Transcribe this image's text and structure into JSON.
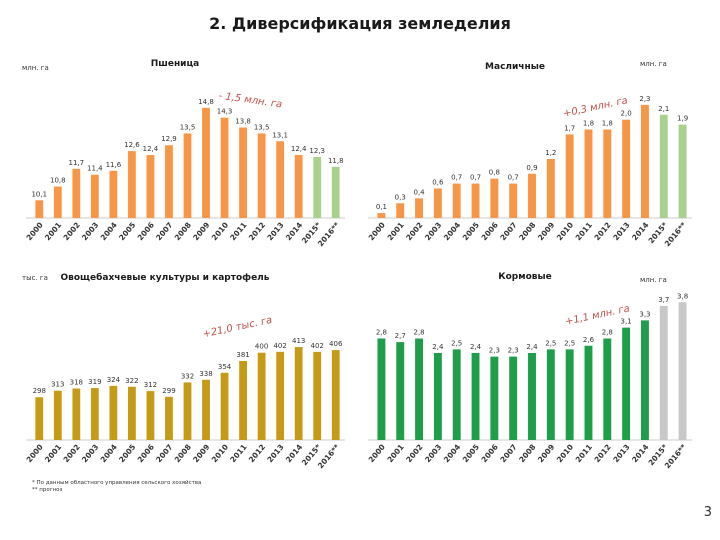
{
  "page": {
    "title": "2. Диверсификация земледелия",
    "page_number": "3",
    "footnotes": [
      "* По данным областного управления сельского хозяйства",
      "** прогноз"
    ]
  },
  "chart_data": [
    {
      "id": "wheat",
      "type": "bar",
      "title": "Пшеница",
      "unit": "млн. га",
      "annotation": "- 1,5 млн. га",
      "categories": [
        "2000",
        "2001",
        "2002",
        "2003",
        "2004",
        "2005",
        "2006",
        "2007",
        "2008",
        "2009",
        "2010",
        "2011",
        "2012",
        "2013",
        "2014",
        "2015*",
        "2016**"
      ],
      "values": [
        10.1,
        10.8,
        11.7,
        11.4,
        11.6,
        12.6,
        12.4,
        12.9,
        13.5,
        14.8,
        14.3,
        13.8,
        13.5,
        13.1,
        12.4,
        12.3,
        11.8
      ],
      "labels": [
        "10,1",
        "10,8",
        "11,7",
        "11,4",
        "11,6",
        "12,6",
        "12,4",
        "12,9",
        "13,5",
        "14,8",
        "14,3",
        "13,8",
        "13,5",
        "13,1",
        "12,4",
        "12,3",
        "11,8"
      ],
      "colors": [
        "#f79646",
        "#f79646",
        "#f79646",
        "#f79646",
        "#f79646",
        "#f79646",
        "#f79646",
        "#f79646",
        "#f79646",
        "#f79646",
        "#f79646",
        "#f79646",
        "#f79646",
        "#f79646",
        "#f79646",
        "#a9d18e",
        "#a9d18e"
      ]
    },
    {
      "id": "oilseeds",
      "type": "bar",
      "title": "Масличные",
      "unit": "млн. га",
      "annotation": "+0,3 млн. га",
      "categories": [
        "2000",
        "2001",
        "2002",
        "2003",
        "2004",
        "2005",
        "2006",
        "2007",
        "2008",
        "2009",
        "2010",
        "2011",
        "2012",
        "2013",
        "2014",
        "2015*",
        "2016**"
      ],
      "values": [
        0.1,
        0.3,
        0.4,
        0.6,
        0.7,
        0.7,
        0.8,
        0.7,
        0.9,
        1.2,
        1.7,
        1.8,
        1.8,
        2.0,
        2.3,
        2.1,
        1.9
      ],
      "labels": [
        "0,1",
        "0,3",
        "0,4",
        "0,6",
        "0,7",
        "0,7",
        "0,8",
        "0,7",
        "0,9",
        "1,2",
        "1,7",
        "1,8",
        "1,8",
        "2,0",
        "2,3",
        "2,1",
        "1,9"
      ],
      "colors": [
        "#f79646",
        "#f79646",
        "#f79646",
        "#f79646",
        "#f79646",
        "#f79646",
        "#f79646",
        "#f79646",
        "#f79646",
        "#f79646",
        "#f79646",
        "#f79646",
        "#f79646",
        "#f79646",
        "#f79646",
        "#a9d18e",
        "#a9d18e"
      ]
    },
    {
      "id": "vegetables",
      "type": "bar",
      "title": "Овощебахчевые культуры и картофель",
      "unit": "тыс. га",
      "annotation": "+21,0 тыс. га",
      "categories": [
        "2000",
        "2001",
        "2002",
        "2003",
        "2004",
        "2005",
        "2006",
        "2007",
        "2008",
        "2009",
        "2010",
        "2011",
        "2012",
        "2013",
        "2014",
        "2015*",
        "2016**"
      ],
      "values": [
        298,
        313,
        318,
        319,
        324,
        322,
        312,
        299,
        332,
        338,
        354,
        381,
        400,
        402,
        413,
        402,
        406
      ],
      "labels": [
        "298",
        "313",
        "318",
        "319",
        "324",
        "322",
        "312",
        "299",
        "332",
        "338",
        "354",
        "381",
        "400",
        "402",
        "413",
        "402",
        "406"
      ],
      "colors": [
        "#c49a16",
        "#c49a16",
        "#c49a16",
        "#c49a16",
        "#c49a16",
        "#c49a16",
        "#c49a16",
        "#c49a16",
        "#c49a16",
        "#c49a16",
        "#c49a16",
        "#c49a16",
        "#c49a16",
        "#c49a16",
        "#c49a16",
        "#c49a16",
        "#c49a16"
      ]
    },
    {
      "id": "forage",
      "type": "bar",
      "title": "Кормовые",
      "unit": "млн. га",
      "annotation": "+1,1 млн. га",
      "categories": [
        "2000",
        "2001",
        "2002",
        "2003",
        "2004",
        "2005",
        "2006",
        "2007",
        "2008",
        "2009",
        "2010",
        "2011",
        "2012",
        "2013",
        "2014",
        "2015*",
        "2016**"
      ],
      "values": [
        2.8,
        2.7,
        2.8,
        2.4,
        2.5,
        2.4,
        2.3,
        2.3,
        2.4,
        2.5,
        2.5,
        2.6,
        2.8,
        3.1,
        3.3,
        3.7,
        3.8
      ],
      "labels": [
        "2,8",
        "2,7",
        "2,8",
        "2,4",
        "2,5",
        "2,4",
        "2,3",
        "2,3",
        "2,4",
        "2,5",
        "2,5",
        "2,6",
        "2,8",
        "3,1",
        "3,3",
        "3,7",
        "3,8"
      ],
      "colors": [
        "#1e9e48",
        "#1e9e48",
        "#1e9e48",
        "#1e9e48",
        "#1e9e48",
        "#1e9e48",
        "#1e9e48",
        "#1e9e48",
        "#1e9e48",
        "#1e9e48",
        "#1e9e48",
        "#1e9e48",
        "#1e9e48",
        "#1e9e48",
        "#1e9e48",
        "#c8c8c8",
        "#c8c8c8"
      ]
    }
  ]
}
